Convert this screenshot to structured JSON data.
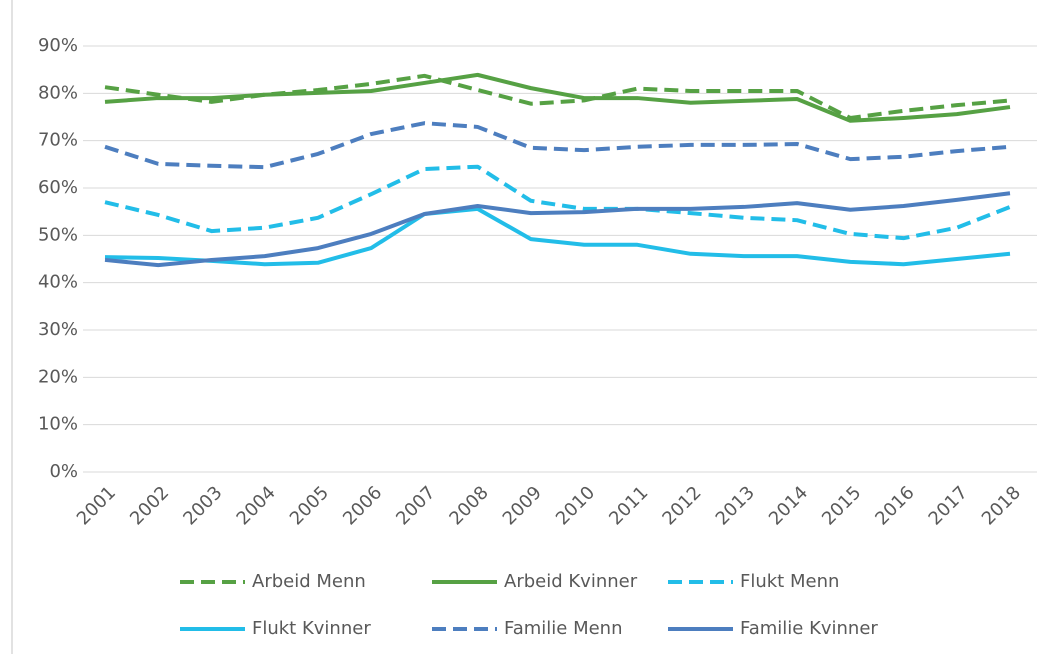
{
  "chart_data": {
    "type": "line",
    "categories": [
      "2001",
      "2002",
      "2003",
      "2004",
      "2005",
      "2006",
      "2007",
      "2008",
      "2009",
      "2010",
      "2011",
      "2012",
      "2013",
      "2014",
      "2015",
      "2016",
      "2017",
      "2018"
    ],
    "series": [
      {
        "name": "Arbeid Menn",
        "color": "#56a144",
        "dash": true,
        "values": [
          81.3,
          79.7,
          78.2,
          79.7,
          80.7,
          82,
          83.7,
          80.7,
          77.8,
          78.5,
          81,
          80.5,
          80.5,
          80.5,
          74.8,
          76.3,
          77.5,
          78.5
        ]
      },
      {
        "name": "Arbeid Kvinner",
        "color": "#56a144",
        "dash": false,
        "values": [
          78.2,
          79,
          79,
          79.7,
          80.1,
          80.5,
          82.2,
          83.9,
          81.1,
          79,
          79,
          78,
          78.4,
          78.8,
          74.2,
          74.8,
          75.6,
          77.1
        ]
      },
      {
        "name": "Flukt Menn",
        "color": "#22bde8",
        "dash": true,
        "values": [
          57,
          54.3,
          50.9,
          51.6,
          53.7,
          58.7,
          64,
          64.5,
          57.3,
          55.6,
          55.6,
          54.7,
          53.7,
          53.2,
          50.3,
          49.4,
          51.6,
          56
        ]
      },
      {
        "name": "Flukt Kvinner",
        "color": "#22bde8",
        "dash": false,
        "values": [
          45.4,
          45.2,
          44.6,
          43.9,
          44.2,
          47.3,
          54.5,
          55.6,
          49.2,
          48,
          48,
          46.1,
          45.6,
          45.6,
          44.4,
          43.9,
          45,
          46.1
        ]
      },
      {
        "name": "Familie Menn",
        "color": "#4d7ebf",
        "dash": true,
        "values": [
          68.7,
          65.1,
          64.7,
          64.4,
          67.2,
          71.4,
          73.7,
          72.9,
          68.5,
          68,
          68.7,
          69.1,
          69.1,
          69.3,
          66.1,
          66.6,
          67.8,
          68.7
        ]
      },
      {
        "name": "Familie Kvinner",
        "color": "#4d7ebf",
        "dash": false,
        "values": [
          44.8,
          43.7,
          44.8,
          45.6,
          47.3,
          50.3,
          54.5,
          56.2,
          54.7,
          54.9,
          55.6,
          55.6,
          56,
          56.8,
          55.4,
          56.2,
          57.5,
          58.9
        ]
      }
    ],
    "ylim": [
      0,
      90
    ],
    "yticks": [
      {
        "value": 0,
        "label": "0%"
      },
      {
        "value": 10,
        "label": "10%"
      },
      {
        "value": 20,
        "label": "20%"
      },
      {
        "value": 30,
        "label": "30%"
      },
      {
        "value": 40,
        "label": "40%"
      },
      {
        "value": 50,
        "label": "50%"
      },
      {
        "value": 60,
        "label": "60%"
      },
      {
        "value": 70,
        "label": "70%"
      },
      {
        "value": 80,
        "label": "80%"
      },
      {
        "value": 90,
        "label": "90%"
      }
    ],
    "grid": true,
    "legend": "bottom"
  }
}
